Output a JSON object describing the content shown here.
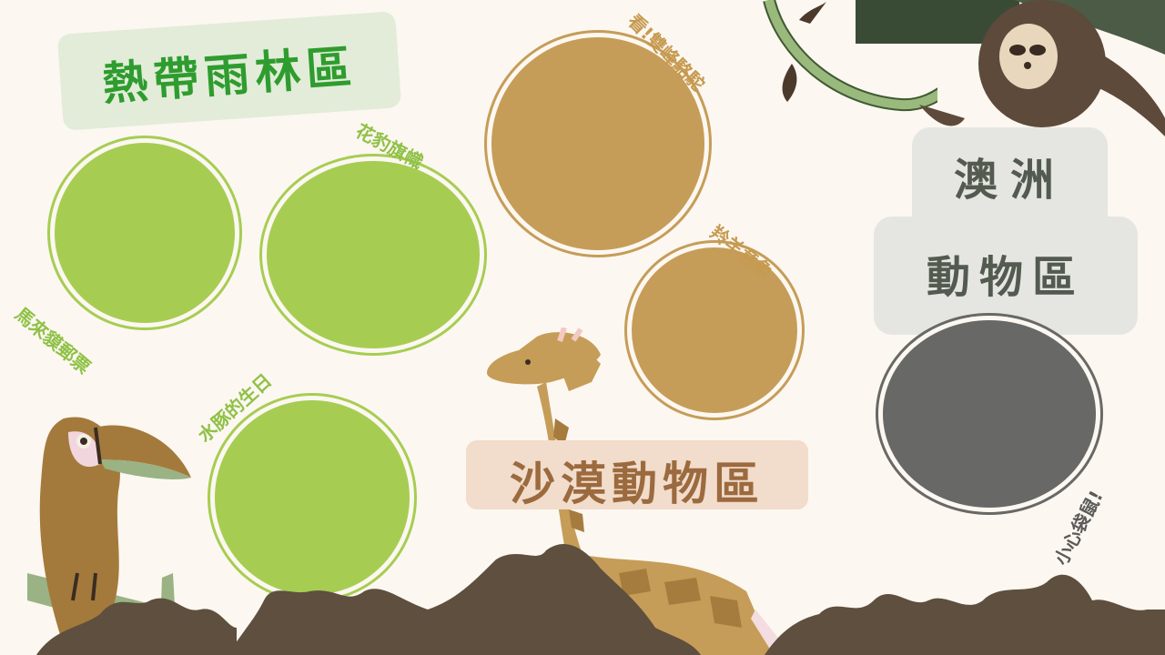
{
  "zones": {
    "rainforest": {
      "title": "熱帶雨林區"
    },
    "desert": {
      "title": "沙漠動物區"
    },
    "australia": {
      "title_line1": "澳洲",
      "title_line2": "動物區"
    }
  },
  "labels": {
    "tapir_stamp": "馬來貘郵票",
    "leopard_flag": "花豹旗幟",
    "dolphin_birthday": "水豚的生日",
    "camel": "看!雙峰駱駝",
    "antelope": "羚羊意象",
    "kangaroo": "小心袋鼠!"
  },
  "colors": {
    "background": "#fcf7f1",
    "rainforest_green": "#a6cd52",
    "desert_tan": "#c59d58",
    "australia_gray": "#686866",
    "dirt": "#5e4f3e"
  }
}
